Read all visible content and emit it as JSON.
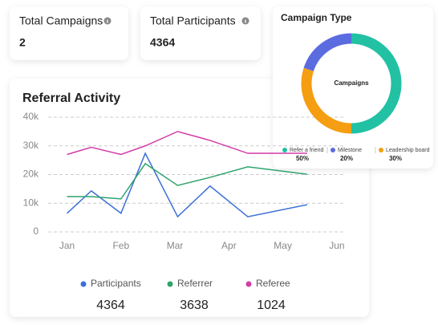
{
  "cards": [
    {
      "title": "Total Campaigns",
      "value": 2
    },
    {
      "title": "Total Participants",
      "value": 4364
    }
  ],
  "chart_data": [
    {
      "type": "line",
      "title": "Referral Activity",
      "x": [
        0,
        0.45,
        1,
        1.45,
        2.05,
        2.65,
        3.35,
        4.45
      ],
      "xlim": [
        -0.35,
        5.15
      ],
      "xticks": [
        {
          "value": 0,
          "label": "Jan"
        },
        {
          "value": 1,
          "label": "Feb"
        },
        {
          "value": 2,
          "label": "Mar"
        },
        {
          "value": 3,
          "label": "Apr"
        },
        {
          "value": 4,
          "label": "May"
        },
        {
          "value": 5,
          "label": "Jun"
        }
      ],
      "ylim": [
        0,
        40000
      ],
      "yticks": [
        0,
        {
          "value": 10000,
          "label": "10k"
        },
        {
          "value": 20000,
          "label": "20k"
        },
        {
          "value": 30000,
          "label": "30k"
        },
        {
          "value": 40000,
          "label": "40k"
        }
      ],
      "grid": true,
      "series": [
        {
          "name": "Participants",
          "color": "#3b6fd6",
          "total": 4364,
          "values": [
            6500,
            14300,
            6500,
            27400,
            5300,
            16000,
            5300,
            9500
          ]
        },
        {
          "name": "Referrer",
          "color": "#2ea36c",
          "total": 3638,
          "values": [
            12300,
            12300,
            11500,
            23800,
            16200,
            19000,
            22700,
            20100
          ]
        },
        {
          "name": "Referee",
          "color": "#d23ca8",
          "total": 1024,
          "values": [
            27000,
            29500,
            27000,
            30000,
            35000,
            31900,
            27400,
            27400
          ]
        }
      ]
    },
    {
      "type": "pie",
      "title": "Campaign Type",
      "center_label": "Campaigns",
      "categories": [
        "Refer a friend",
        "Milestone",
        "Leadership board"
      ],
      "values": [
        50,
        20,
        30
      ],
      "value_labels": [
        "50%",
        "20%",
        "30%"
      ],
      "colors": [
        "#22c1a4",
        "#5b6be0",
        "#f59e12"
      ]
    }
  ]
}
